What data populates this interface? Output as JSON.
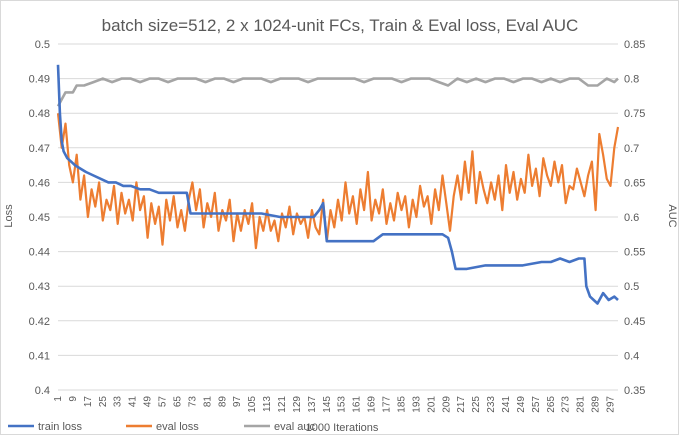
{
  "chart_data": {
    "type": "line",
    "title": "batch size=512, 2 x 1024-unit FCs, Train & Eval loss, Eval AUC",
    "xlabel": "1000 Iterations",
    "ylabel": "Loss",
    "y2label": "AUC",
    "ylim": [
      0.4,
      0.5
    ],
    "y2lim": [
      0.35,
      0.85
    ],
    "yticks": [
      "0.4",
      "0.41",
      "0.42",
      "0.43",
      "0.44",
      "0.45",
      "0.46",
      "0.47",
      "0.48",
      "0.49",
      "0.5"
    ],
    "y2ticks": [
      "0.35",
      "0.4",
      "0.45",
      "0.5",
      "0.55",
      "0.6",
      "0.65",
      "0.7",
      "0.75",
      "0.8",
      "0.85"
    ],
    "xrange": [
      1,
      301
    ],
    "xticks": [
      1,
      9,
      17,
      25,
      33,
      41,
      49,
      57,
      65,
      73,
      81,
      89,
      97,
      105,
      113,
      121,
      129,
      137,
      145,
      153,
      161,
      169,
      177,
      185,
      193,
      201,
      209,
      217,
      225,
      233,
      241,
      249,
      257,
      265,
      273,
      281,
      289,
      297
    ],
    "grid": true,
    "legend_position": "bottom",
    "colors": {
      "train_loss": "#4472c4",
      "eval_loss": "#ed7d31",
      "eval_auc": "#a5a5a5",
      "grid": "#d9d9d9",
      "text": "#595959"
    },
    "series": [
      {
        "name": "train loss",
        "axis": "left",
        "x": [
          1,
          2,
          3,
          4,
          6,
          8,
          10,
          13,
          16,
          20,
          24,
          28,
          32,
          36,
          40,
          45,
          50,
          55,
          60,
          65,
          70,
          72,
          74,
          80,
          90,
          100,
          110,
          120,
          130,
          138,
          141,
          143,
          145,
          150,
          160,
          170,
          175,
          180,
          190,
          200,
          207,
          210,
          212,
          214,
          216,
          220,
          230,
          240,
          250,
          260,
          265,
          270,
          275,
          280,
          283,
          284,
          286,
          288,
          290,
          293,
          296,
          299,
          301
        ],
        "values": [
          0.494,
          0.48,
          0.472,
          0.469,
          0.467,
          0.466,
          0.465,
          0.464,
          0.463,
          0.462,
          0.461,
          0.46,
          0.46,
          0.459,
          0.459,
          0.458,
          0.458,
          0.457,
          0.457,
          0.457,
          0.457,
          0.451,
          0.451,
          0.451,
          0.451,
          0.451,
          0.451,
          0.45,
          0.45,
          0.45,
          0.452,
          0.454,
          0.443,
          0.443,
          0.443,
          0.443,
          0.445,
          0.445,
          0.445,
          0.445,
          0.445,
          0.444,
          0.44,
          0.435,
          0.435,
          0.435,
          0.436,
          0.436,
          0.436,
          0.437,
          0.437,
          0.438,
          0.437,
          0.438,
          0.438,
          0.43,
          0.427,
          0.426,
          0.425,
          0.428,
          0.426,
          0.427,
          0.426
        ]
      },
      {
        "name": "eval loss",
        "axis": "left",
        "x": [
          1,
          3,
          5,
          7,
          9,
          11,
          13,
          15,
          17,
          19,
          21,
          23,
          25,
          27,
          29,
          31,
          33,
          35,
          37,
          39,
          41,
          43,
          45,
          47,
          49,
          51,
          53,
          55,
          57,
          59,
          61,
          63,
          65,
          67,
          69,
          71,
          73,
          75,
          77,
          79,
          81,
          83,
          85,
          87,
          89,
          91,
          93,
          95,
          97,
          99,
          101,
          103,
          105,
          107,
          109,
          111,
          113,
          115,
          117,
          119,
          121,
          123,
          125,
          127,
          129,
          131,
          133,
          135,
          137,
          139,
          141,
          143,
          145,
          147,
          149,
          151,
          153,
          155,
          157,
          159,
          161,
          163,
          165,
          167,
          169,
          171,
          173,
          175,
          177,
          179,
          181,
          183,
          185,
          187,
          189,
          191,
          193,
          195,
          197,
          199,
          201,
          203,
          205,
          207,
          209,
          211,
          213,
          215,
          217,
          219,
          221,
          223,
          225,
          227,
          229,
          231,
          233,
          235,
          237,
          239,
          241,
          243,
          245,
          247,
          249,
          251,
          253,
          255,
          257,
          259,
          261,
          263,
          265,
          267,
          269,
          271,
          273,
          275,
          277,
          279,
          281,
          283,
          285,
          287,
          289,
          291,
          293,
          295,
          297,
          299,
          301
        ],
        "values": [
          0.48,
          0.47,
          0.477,
          0.465,
          0.46,
          0.468,
          0.455,
          0.462,
          0.45,
          0.458,
          0.453,
          0.46,
          0.449,
          0.455,
          0.452,
          0.459,
          0.448,
          0.457,
          0.451,
          0.455,
          0.449,
          0.46,
          0.452,
          0.456,
          0.444,
          0.454,
          0.448,
          0.453,
          0.442,
          0.455,
          0.449,
          0.456,
          0.447,
          0.452,
          0.446,
          0.455,
          0.46,
          0.452,
          0.458,
          0.447,
          0.454,
          0.45,
          0.457,
          0.446,
          0.452,
          0.449,
          0.455,
          0.443,
          0.451,
          0.446,
          0.452,
          0.448,
          0.454,
          0.441,
          0.45,
          0.446,
          0.452,
          0.446,
          0.449,
          0.443,
          0.451,
          0.447,
          0.453,
          0.445,
          0.451,
          0.448,
          0.45,
          0.444,
          0.452,
          0.447,
          0.445,
          0.455,
          0.443,
          0.452,
          0.447,
          0.455,
          0.449,
          0.46,
          0.451,
          0.456,
          0.448,
          0.458,
          0.452,
          0.463,
          0.449,
          0.455,
          0.451,
          0.458,
          0.448,
          0.454,
          0.449,
          0.457,
          0.452,
          0.456,
          0.447,
          0.455,
          0.45,
          0.459,
          0.453,
          0.456,
          0.448,
          0.458,
          0.452,
          0.462,
          0.454,
          0.446,
          0.456,
          0.462,
          0.455,
          0.466,
          0.457,
          0.469,
          0.454,
          0.463,
          0.458,
          0.454,
          0.46,
          0.455,
          0.462,
          0.452,
          0.465,
          0.457,
          0.463,
          0.455,
          0.461,
          0.457,
          0.468,
          0.459,
          0.464,
          0.456,
          0.467,
          0.462,
          0.459,
          0.466,
          0.46,
          0.465,
          0.454,
          0.459,
          0.458,
          0.464,
          0.46,
          0.456,
          0.462,
          0.466,
          0.452,
          0.474,
          0.468,
          0.461,
          0.459,
          0.47,
          0.476
        ]
      },
      {
        "name": "eval auc",
        "axis": "right",
        "x": [
          1,
          3,
          5,
          7,
          9,
          11,
          15,
          20,
          25,
          30,
          35,
          40,
          45,
          50,
          55,
          60,
          65,
          70,
          75,
          80,
          85,
          90,
          95,
          100,
          105,
          110,
          115,
          120,
          125,
          130,
          135,
          140,
          145,
          150,
          155,
          160,
          165,
          170,
          175,
          180,
          185,
          190,
          195,
          200,
          205,
          210,
          215,
          220,
          225,
          230,
          235,
          240,
          245,
          250,
          255,
          260,
          265,
          270,
          275,
          280,
          285,
          290,
          295,
          299,
          301
        ],
        "values": [
          0.76,
          0.77,
          0.78,
          0.78,
          0.78,
          0.79,
          0.79,
          0.795,
          0.8,
          0.795,
          0.8,
          0.8,
          0.795,
          0.8,
          0.8,
          0.795,
          0.8,
          0.8,
          0.8,
          0.795,
          0.8,
          0.8,
          0.795,
          0.8,
          0.8,
          0.8,
          0.795,
          0.8,
          0.8,
          0.8,
          0.795,
          0.8,
          0.8,
          0.8,
          0.8,
          0.8,
          0.795,
          0.8,
          0.8,
          0.8,
          0.795,
          0.8,
          0.8,
          0.8,
          0.795,
          0.79,
          0.8,
          0.795,
          0.8,
          0.795,
          0.8,
          0.8,
          0.795,
          0.8,
          0.8,
          0.795,
          0.8,
          0.795,
          0.8,
          0.8,
          0.79,
          0.79,
          0.8,
          0.795,
          0.8
        ]
      }
    ]
  }
}
